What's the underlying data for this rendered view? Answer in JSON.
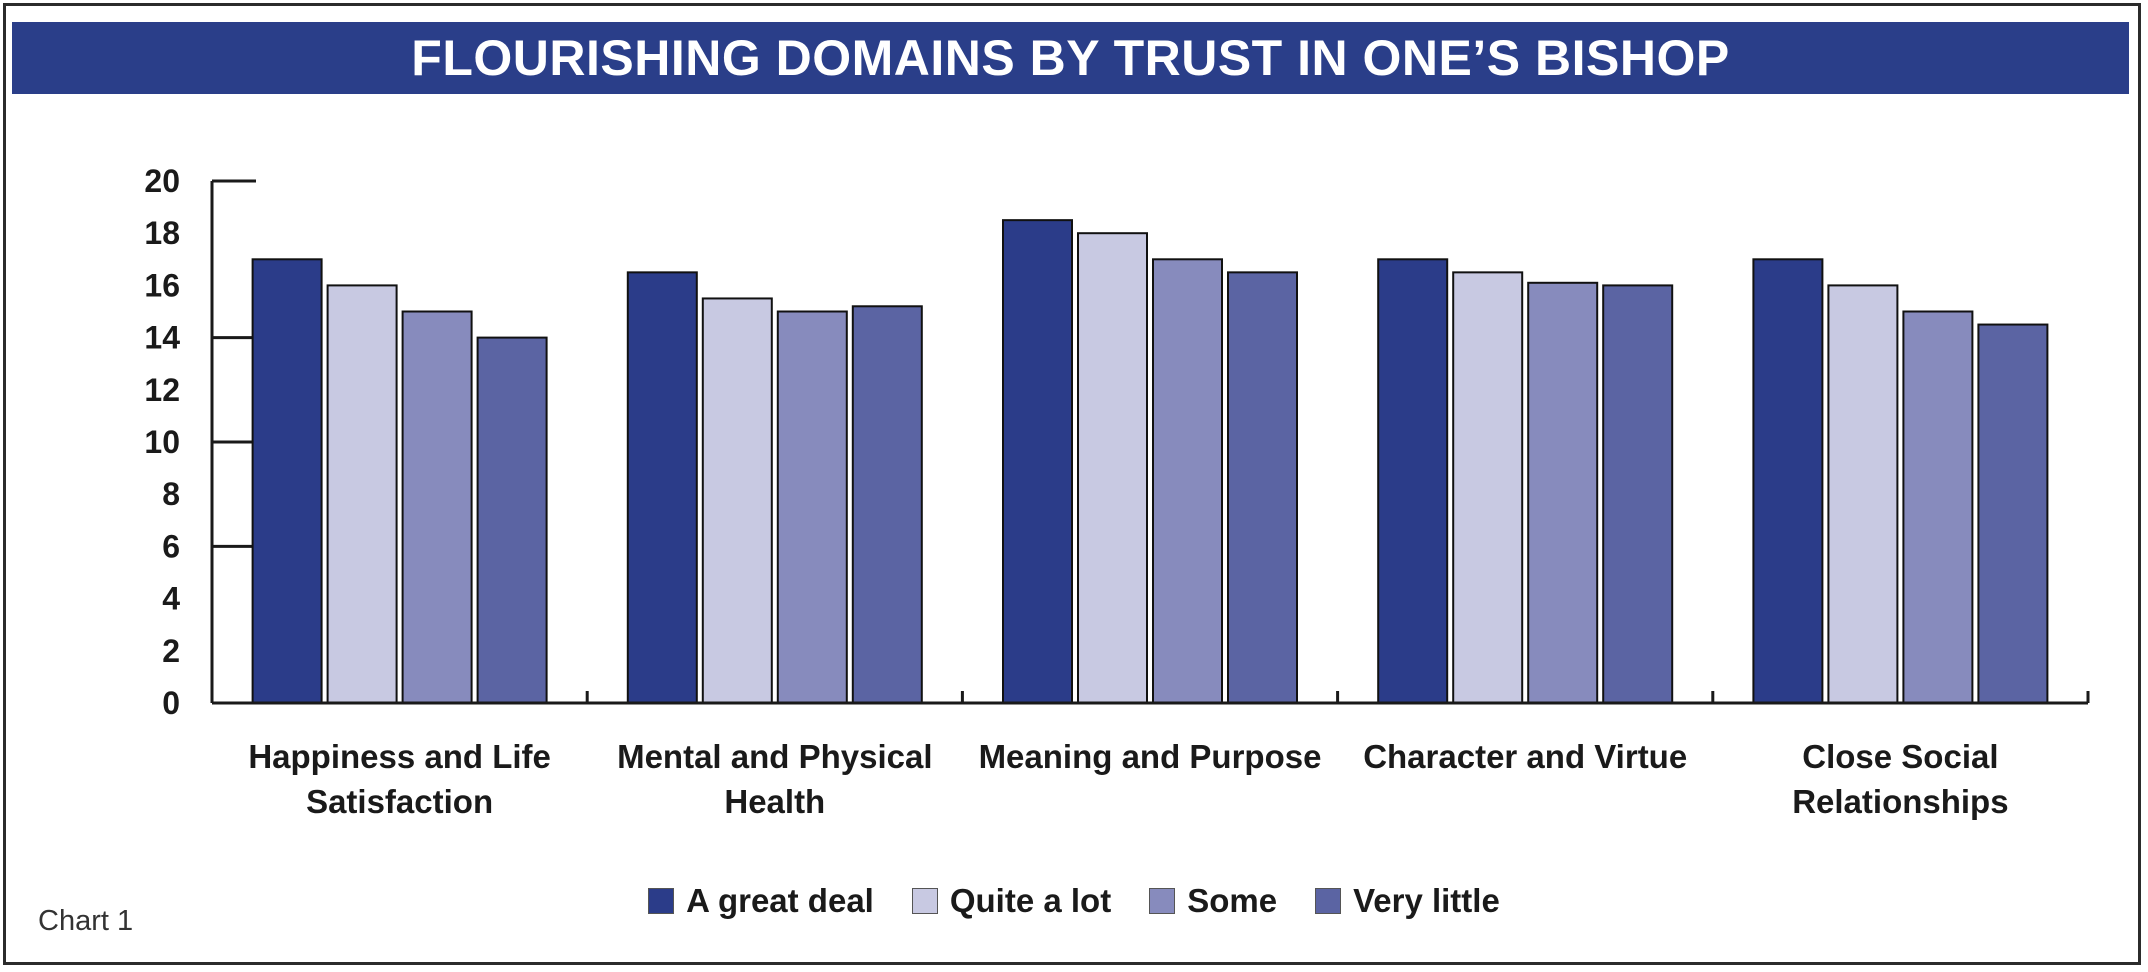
{
  "colors": {
    "title_bg": "#2a3e89",
    "axis": "#1a1a1a",
    "bar_outline": "#111111"
  },
  "caption": "Chart 1",
  "chart_data": {
    "type": "bar",
    "title": "FLOURISHING DOMAINS BY TRUST IN ONE’S BISHOP",
    "categories": [
      [
        "Happiness and Life",
        "Satisfaction"
      ],
      [
        "Mental and Physical",
        "Health"
      ],
      [
        "Meaning and Purpose"
      ],
      [
        "Character and Virtue"
      ],
      [
        "Close Social",
        "Relationships"
      ]
    ],
    "series": [
      {
        "name": "A great deal",
        "color": "#2b3c89",
        "values": [
          17.0,
          16.5,
          18.5,
          17.0,
          17.0
        ]
      },
      {
        "name": "Quite a lot",
        "color": "#c8c9e2",
        "values": [
          16.0,
          15.5,
          18.0,
          16.5,
          16.0
        ]
      },
      {
        "name": "Some",
        "color": "#878bbd",
        "values": [
          15.0,
          15.0,
          17.0,
          16.1,
          15.0
        ]
      },
      {
        "name": "Very little",
        "color": "#5b64a3",
        "values": [
          14.0,
          15.2,
          16.5,
          16.0,
          14.5
        ]
      }
    ],
    "yticks": [
      "0",
      "2",
      "4",
      "6",
      "8",
      "10",
      "12",
      "14",
      "16",
      "18",
      "20"
    ],
    "ylim": [
      0,
      20
    ],
    "xlabel": "",
    "ylabel": "",
    "legend": "bottom-center",
    "grid": false
  }
}
